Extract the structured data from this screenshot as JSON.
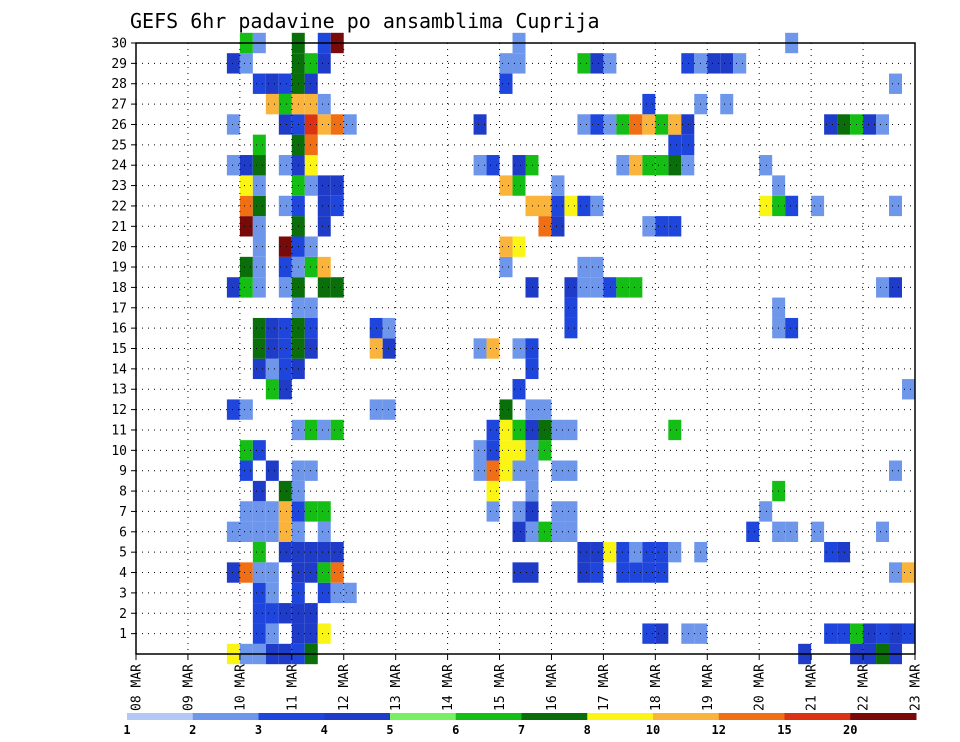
{
  "chart_data": {
    "type": "heatmap",
    "title": "GEFS 6hr padavine po ansamblima Cuprija",
    "xlabel": "",
    "ylabel": "",
    "x_ticks": [
      "08 MAR",
      "09 MAR",
      "10 MAR",
      "11 MAR",
      "12 MAR",
      "13 MAR",
      "14 MAR",
      "15 MAR",
      "16 MAR",
      "17 MAR",
      "18 MAR",
      "19 MAR",
      "20 MAR",
      "21 MAR",
      "22 MAR",
      "23 MAR"
    ],
    "x_range": [
      0,
      15
    ],
    "time_step_days": 0.25,
    "y_ticks": [
      1,
      2,
      3,
      4,
      5,
      6,
      7,
      8,
      9,
      10,
      11,
      12,
      13,
      14,
      15,
      16,
      17,
      18,
      19,
      20,
      21,
      22,
      23,
      24,
      25,
      26,
      27,
      28,
      29,
      30
    ],
    "y_range": [
      0,
      30
    ],
    "grid": "dotted",
    "colorbar": {
      "levels": [
        "1",
        "2",
        "3",
        "4",
        "5",
        "6",
        "7",
        "8",
        "10",
        "12",
        "15",
        "20"
      ],
      "colors": [
        "#b4c8f5",
        "#6e96eb",
        "#1e46dc",
        "#1e3cc8",
        "#78f064",
        "#14be14",
        "#0a6e0a",
        "#faf514",
        "#fab43c",
        "#f06e14",
        "#dc3214",
        "#780a0a"
      ]
    },
    "cells": [
      [
        0,
        1.75,
        7
      ],
      [
        0,
        2,
        1
      ],
      [
        0,
        2.25,
        1
      ],
      [
        0,
        2.5,
        3
      ],
      [
        0,
        2.75,
        3
      ],
      [
        0,
        3,
        2
      ],
      [
        0,
        3.25,
        6
      ],
      [
        1,
        2.25,
        2
      ],
      [
        1,
        2.5,
        1
      ],
      [
        1,
        3,
        3
      ],
      [
        1,
        3.25,
        3
      ],
      [
        1,
        3.5,
        7
      ],
      [
        1,
        9.75,
        2
      ],
      [
        1,
        10,
        3
      ],
      [
        1,
        10.5,
        1
      ],
      [
        1,
        10.75,
        1
      ],
      [
        1,
        13.25,
        2
      ],
      [
        1,
        13.5,
        2
      ],
      [
        1,
        13.75,
        5
      ],
      [
        1,
        14,
        3
      ],
      [
        1,
        14.25,
        2
      ],
      [
        1,
        14.5,
        3
      ],
      [
        1,
        14.75,
        2
      ],
      [
        2,
        2.25,
        2
      ],
      [
        2,
        2.5,
        2
      ],
      [
        2,
        2.75,
        3
      ],
      [
        2,
        3,
        3
      ],
      [
        2,
        3.25,
        3
      ],
      [
        3,
        2.25,
        2
      ],
      [
        3,
        2.5,
        1
      ],
      [
        3,
        3,
        2
      ],
      [
        3,
        3.5,
        2
      ],
      [
        3,
        3.75,
        1
      ],
      [
        3,
        4,
        1
      ],
      [
        4,
        1.75,
        3
      ],
      [
        4,
        2,
        9
      ],
      [
        4,
        2.25,
        1
      ],
      [
        4,
        2.5,
        1
      ],
      [
        4,
        3,
        3
      ],
      [
        4,
        3.25,
        3
      ],
      [
        4,
        3.5,
        5
      ],
      [
        4,
        3.75,
        9
      ],
      [
        4,
        7.25,
        3
      ],
      [
        4,
        7.5,
        3
      ],
      [
        4,
        8.5,
        3
      ],
      [
        4,
        8.75,
        2
      ],
      [
        4,
        9.25,
        2
      ],
      [
        4,
        9.5,
        2
      ],
      [
        4,
        9.75,
        2
      ],
      [
        4,
        10,
        2
      ],
      [
        4,
        14.5,
        1
      ],
      [
        4,
        14.75,
        8
      ],
      [
        4,
        15,
        8
      ],
      [
        5,
        2.25,
        5
      ],
      [
        5,
        2.75,
        3
      ],
      [
        5,
        3,
        3
      ],
      [
        5,
        3.25,
        3
      ],
      [
        5,
        3.5,
        3
      ],
      [
        5,
        3.75,
        3
      ],
      [
        5,
        8.5,
        3
      ],
      [
        5,
        8.75,
        3
      ],
      [
        5,
        9,
        7
      ],
      [
        5,
        9.25,
        2
      ],
      [
        5,
        9.5,
        1
      ],
      [
        5,
        9.75,
        2
      ],
      [
        5,
        10,
        2
      ],
      [
        5,
        10.25,
        1
      ],
      [
        5,
        10.75,
        1
      ],
      [
        5,
        13.25,
        2
      ],
      [
        5,
        13.5,
        3
      ],
      [
        6,
        1.75,
        1
      ],
      [
        6,
        2,
        1
      ],
      [
        6,
        2.25,
        1
      ],
      [
        6,
        2.5,
        1
      ],
      [
        6,
        2.75,
        8
      ],
      [
        6,
        3,
        1
      ],
      [
        6,
        3.5,
        1
      ],
      [
        6,
        7.25,
        3
      ],
      [
        6,
        7.5,
        1
      ],
      [
        6,
        7.75,
        5
      ],
      [
        6,
        8,
        1
      ],
      [
        6,
        8.25,
        1
      ],
      [
        6,
        11.75,
        2
      ],
      [
        6,
        12.25,
        1
      ],
      [
        6,
        12.5,
        1
      ],
      [
        6,
        13,
        1
      ],
      [
        6,
        14.25,
        1
      ],
      [
        7,
        2,
        1
      ],
      [
        7,
        2.25,
        1
      ],
      [
        7,
        2.5,
        1
      ],
      [
        7,
        2.75,
        8
      ],
      [
        7,
        3,
        2
      ],
      [
        7,
        3.25,
        5
      ],
      [
        7,
        3.5,
        5
      ],
      [
        7,
        6.75,
        1
      ],
      [
        7,
        7.25,
        1
      ],
      [
        7,
        7.5,
        3
      ],
      [
        7,
        8,
        1
      ],
      [
        7,
        8.25,
        1
      ],
      [
        7,
        12,
        1
      ],
      [
        8,
        2.25,
        3
      ],
      [
        8,
        2.75,
        6
      ],
      [
        8,
        3,
        1
      ],
      [
        8,
        6.75,
        7
      ],
      [
        8,
        7.5,
        1
      ],
      [
        8,
        12.25,
        5
      ],
      [
        8,
        15,
        6
      ],
      [
        9,
        2,
        2
      ],
      [
        9,
        2.5,
        3
      ],
      [
        9,
        3,
        1
      ],
      [
        9,
        3.25,
        1
      ],
      [
        9,
        6.5,
        1
      ],
      [
        9,
        6.75,
        9
      ],
      [
        9,
        7,
        7
      ],
      [
        9,
        7.25,
        1
      ],
      [
        9,
        7.5,
        1
      ],
      [
        9,
        8,
        1
      ],
      [
        9,
        8.25,
        1
      ],
      [
        9,
        14.5,
        1
      ],
      [
        9,
        15,
        1
      ],
      [
        10,
        2,
        5
      ],
      [
        10,
        2.25,
        2
      ],
      [
        10,
        6.5,
        1
      ],
      [
        10,
        6.75,
        2
      ],
      [
        10,
        7,
        7
      ],
      [
        10,
        7.25,
        7
      ],
      [
        10,
        7.5,
        1
      ],
      [
        10,
        7.75,
        5
      ],
      [
        11,
        3,
        1
      ],
      [
        11,
        3.25,
        5
      ],
      [
        11,
        3.5,
        1
      ],
      [
        11,
        3.75,
        5
      ],
      [
        11,
        6.75,
        2
      ],
      [
        11,
        7,
        7
      ],
      [
        11,
        7.25,
        5
      ],
      [
        11,
        7.5,
        3
      ],
      [
        11,
        7.75,
        6
      ],
      [
        11,
        8,
        1
      ],
      [
        11,
        8.25,
        1
      ],
      [
        11,
        10.25,
        5
      ],
      [
        12,
        1.75,
        2
      ],
      [
        12,
        2,
        1
      ],
      [
        12,
        4.5,
        1
      ],
      [
        12,
        4.75,
        1
      ],
      [
        12,
        7,
        6
      ],
      [
        12,
        7.5,
        1
      ],
      [
        12,
        7.75,
        1
      ],
      [
        13,
        2.5,
        5
      ],
      [
        13,
        2.75,
        3
      ],
      [
        13,
        7.25,
        2
      ],
      [
        13,
        14.75,
        1
      ],
      [
        14,
        2.25,
        3
      ],
      [
        14,
        2.5,
        1
      ],
      [
        14,
        2.75,
        2
      ],
      [
        14,
        3,
        3
      ],
      [
        14,
        7.5,
        2
      ],
      [
        15,
        2.25,
        6
      ],
      [
        15,
        2.5,
        3
      ],
      [
        15,
        2.75,
        2
      ],
      [
        15,
        3,
        6
      ],
      [
        15,
        3.25,
        3
      ],
      [
        15,
        4.5,
        8
      ],
      [
        15,
        4.75,
        3
      ],
      [
        15,
        6.5,
        1
      ],
      [
        15,
        6.75,
        8
      ],
      [
        15,
        7.25,
        1
      ],
      [
        15,
        7.5,
        2
      ],
      [
        15,
        15,
        9
      ],
      [
        16,
        2.25,
        6
      ],
      [
        16,
        2.5,
        3
      ],
      [
        16,
        2.75,
        2
      ],
      [
        16,
        3,
        6
      ],
      [
        16,
        3.25,
        2
      ],
      [
        16,
        4.5,
        2
      ],
      [
        16,
        4.75,
        1
      ],
      [
        16,
        8.25,
        2
      ],
      [
        16,
        12.25,
        1
      ],
      [
        16,
        12.5,
        2
      ],
      [
        17,
        3,
        1
      ],
      [
        17,
        3.25,
        1
      ],
      [
        17,
        8.25,
        2
      ],
      [
        17,
        12.25,
        1
      ],
      [
        18,
        1.75,
        3
      ],
      [
        18,
        2,
        5
      ],
      [
        18,
        2.25,
        1
      ],
      [
        18,
        2.75,
        1
      ],
      [
        18,
        3,
        6
      ],
      [
        18,
        3.5,
        6
      ],
      [
        18,
        3.75,
        6
      ],
      [
        18,
        7.5,
        3
      ],
      [
        18,
        8.25,
        3
      ],
      [
        18,
        8.5,
        1
      ],
      [
        18,
        8.75,
        1
      ],
      [
        18,
        9,
        2
      ],
      [
        18,
        9.25,
        5
      ],
      [
        18,
        9.5,
        5
      ],
      [
        18,
        14.25,
        1
      ],
      [
        18,
        14.5,
        3
      ],
      [
        19,
        2,
        6
      ],
      [
        19,
        2.25,
        1
      ],
      [
        19,
        2.75,
        2
      ],
      [
        19,
        3,
        1
      ],
      [
        19,
        3.25,
        5
      ],
      [
        19,
        3.5,
        8
      ],
      [
        19,
        7,
        1
      ],
      [
        19,
        8.5,
        1
      ],
      [
        19,
        8.75,
        1
      ],
      [
        20,
        2.25,
        1
      ],
      [
        20,
        2.75,
        11
      ],
      [
        20,
        3,
        2
      ],
      [
        20,
        3.25,
        1
      ],
      [
        20,
        7,
        8
      ],
      [
        20,
        7.25,
        7
      ],
      [
        21,
        2,
        11
      ],
      [
        21,
        2.25,
        1
      ],
      [
        21,
        3,
        6
      ],
      [
        21,
        3.5,
        3
      ],
      [
        21,
        7.75,
        9
      ],
      [
        21,
        8,
        3
      ],
      [
        21,
        9.75,
        1
      ],
      [
        21,
        10,
        2
      ],
      [
        21,
        10.25,
        2
      ],
      [
        22,
        2,
        9
      ],
      [
        22,
        2.25,
        6
      ],
      [
        22,
        2.75,
        1
      ],
      [
        22,
        3,
        2
      ],
      [
        22,
        3.5,
        3
      ],
      [
        22,
        3.75,
        2
      ],
      [
        22,
        7.5,
        8
      ],
      [
        22,
        7.75,
        8
      ],
      [
        22,
        8,
        2
      ],
      [
        22,
        8.25,
        7
      ],
      [
        22,
        8.5,
        2
      ],
      [
        22,
        8.75,
        1
      ],
      [
        22,
        12,
        7
      ],
      [
        22,
        12.25,
        5
      ],
      [
        22,
        12.5,
        2
      ],
      [
        22,
        13,
        1
      ],
      [
        22,
        14.5,
        1
      ],
      [
        23,
        2,
        7
      ],
      [
        23,
        2.25,
        1
      ],
      [
        23,
        3,
        5
      ],
      [
        23,
        3.25,
        1
      ],
      [
        23,
        3.5,
        3
      ],
      [
        23,
        3.75,
        3
      ],
      [
        23,
        7,
        8
      ],
      [
        23,
        7.25,
        5
      ],
      [
        23,
        8,
        1
      ],
      [
        23,
        12.25,
        1
      ],
      [
        24,
        1.75,
        1
      ],
      [
        24,
        2,
        3
      ],
      [
        24,
        2.25,
        6
      ],
      [
        24,
        2.75,
        1
      ],
      [
        24,
        3,
        3
      ],
      [
        24,
        3.25,
        7
      ],
      [
        24,
        6.5,
        1
      ],
      [
        24,
        6.75,
        2
      ],
      [
        24,
        7.25,
        3
      ],
      [
        24,
        7.5,
        5
      ],
      [
        24,
        9.25,
        1
      ],
      [
        24,
        9.5,
        8
      ],
      [
        24,
        9.75,
        5
      ],
      [
        24,
        10,
        5
      ],
      [
        24,
        10.25,
        6
      ],
      [
        24,
        10.5,
        1
      ],
      [
        24,
        12,
        1
      ],
      [
        25,
        2.25,
        5
      ],
      [
        25,
        3,
        6
      ],
      [
        25,
        3.25,
        9
      ],
      [
        25,
        10.25,
        2
      ],
      [
        25,
        10.5,
        2
      ],
      [
        26,
        1.75,
        1
      ],
      [
        26,
        2.75,
        3
      ],
      [
        26,
        3,
        2
      ],
      [
        26,
        3.25,
        10
      ],
      [
        26,
        3.5,
        8
      ],
      [
        26,
        3.75,
        9
      ],
      [
        26,
        4,
        1
      ],
      [
        26,
        6.5,
        3
      ],
      [
        26,
        8.5,
        1
      ],
      [
        26,
        8.75,
        2
      ],
      [
        26,
        9,
        1
      ],
      [
        26,
        9.25,
        5
      ],
      [
        26,
        9.5,
        9
      ],
      [
        26,
        9.75,
        8
      ],
      [
        26,
        10,
        5
      ],
      [
        26,
        10.25,
        8
      ],
      [
        26,
        10.5,
        3
      ],
      [
        26,
        13.25,
        3
      ],
      [
        26,
        13.5,
        6
      ],
      [
        26,
        13.75,
        5
      ],
      [
        26,
        14,
        3
      ],
      [
        26,
        14.25,
        1
      ],
      [
        27,
        2.5,
        8
      ],
      [
        27,
        2.75,
        5
      ],
      [
        27,
        3,
        8
      ],
      [
        27,
        3.25,
        8
      ],
      [
        27,
        3.5,
        1
      ],
      [
        27,
        9.75,
        2
      ],
      [
        27,
        10.75,
        1
      ],
      [
        27,
        11.25,
        1
      ],
      [
        28,
        2.25,
        2
      ],
      [
        28,
        2.5,
        3
      ],
      [
        28,
        2.75,
        2
      ],
      [
        28,
        3,
        6
      ],
      [
        28,
        3.25,
        3
      ],
      [
        28,
        7,
        2
      ],
      [
        28,
        14.5,
        1
      ],
      [
        29,
        1.75,
        3
      ],
      [
        29,
        2,
        1
      ],
      [
        29,
        3,
        6
      ],
      [
        29,
        3.25,
        5
      ],
      [
        29,
        3.5,
        3
      ],
      [
        29,
        7,
        1
      ],
      [
        29,
        7.25,
        1
      ],
      [
        29,
        8.5,
        5
      ],
      [
        29,
        8.75,
        3
      ],
      [
        29,
        9,
        1
      ],
      [
        29,
        10.5,
        2
      ],
      [
        29,
        10.75,
        1
      ],
      [
        29,
        11,
        3
      ],
      [
        29,
        11.25,
        3
      ],
      [
        29,
        11.5,
        1
      ],
      [
        30,
        2,
        5
      ],
      [
        30,
        2.25,
        1
      ],
      [
        30,
        3,
        6
      ],
      [
        30,
        3.5,
        2
      ],
      [
        30,
        3.75,
        11
      ],
      [
        30,
        7.25,
        1
      ],
      [
        30,
        12.5,
        1
      ],
      [
        0,
        13.75,
        3
      ],
      [
        0,
        14,
        3
      ],
      [
        0,
        14.25,
        6
      ],
      [
        0,
        14.5,
        3
      ],
      [
        0,
        12.75,
        3
      ]
    ]
  }
}
